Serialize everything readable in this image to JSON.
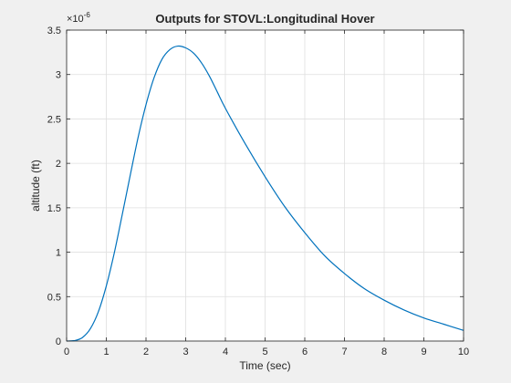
{
  "chart_data": {
    "type": "line",
    "title": "Outputs for STOVL:Longitudinal Hover",
    "xlabel": "Time (sec)",
    "ylabel": "altitude (ft)",
    "xlim": [
      0,
      10
    ],
    "ylim": [
      0,
      3.5
    ],
    "y_scale_exponent": "-6",
    "x_ticks": [
      "0",
      "1",
      "2",
      "3",
      "4",
      "5",
      "6",
      "7",
      "8",
      "9",
      "10"
    ],
    "y_ticks": [
      "0",
      "0.5",
      "1",
      "1.5",
      "2",
      "2.5",
      "3",
      "3.5"
    ],
    "grid": true,
    "series": [
      {
        "color": "#0072bd",
        "x": [
          0,
          0.2,
          0.4,
          0.6,
          0.8,
          1.0,
          1.2,
          1.4,
          1.6,
          1.8,
          2.0,
          2.2,
          2.4,
          2.6,
          2.8,
          3.0,
          3.2,
          3.4,
          3.6,
          3.8,
          4.0,
          4.5,
          5.0,
          5.5,
          6.0,
          6.5,
          7.0,
          7.5,
          8.0,
          8.5,
          9.0,
          9.5,
          10.0
        ],
        "y": [
          0,
          0.005,
          0.04,
          0.14,
          0.33,
          0.62,
          0.99,
          1.42,
          1.86,
          2.29,
          2.66,
          2.96,
          3.17,
          3.28,
          3.32,
          3.3,
          3.24,
          3.13,
          2.98,
          2.8,
          2.62,
          2.22,
          1.85,
          1.51,
          1.22,
          0.96,
          0.76,
          0.59,
          0.46,
          0.35,
          0.26,
          0.19,
          0.12
        ]
      }
    ]
  }
}
